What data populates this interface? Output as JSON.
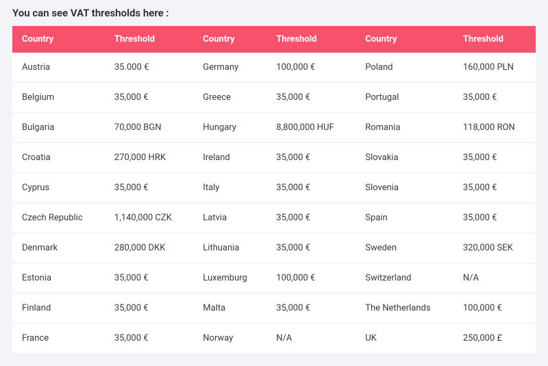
{
  "title": "You can see VAT thresholds here :",
  "colors": {
    "header_bg": "#f7526b",
    "header_text": "#ffffff",
    "page_bg": "#f3f4f7",
    "cell_bg": "#ffffff",
    "cell_text": "#3a3a3a",
    "border": "#ececf0",
    "title_text": "#2a2a2a"
  },
  "table": {
    "type": "table",
    "columns": [
      "Country",
      "Threshold",
      "Country",
      "Threshold",
      "Country",
      "Threshold"
    ],
    "rows": [
      [
        "Austria",
        "35.000 €",
        "Germany",
        "100,000 €",
        "Poland",
        "160,000 PLN"
      ],
      [
        "Belgium",
        "35,000 €",
        "Greece",
        "35,000 €",
        "Portugal",
        "35,000 €"
      ],
      [
        "Bulgaria",
        "70,000 BGN",
        "Hungary",
        "8,800,000 HUF",
        "Romania",
        "118,000 RON"
      ],
      [
        "Croatia",
        "270,000 HRK",
        "Ireland",
        "35,000 €",
        "Slovakia",
        "35,000 €"
      ],
      [
        "Cyprus",
        "35,000 €",
        "Italy",
        "35,000 €",
        "Slovenia",
        "35,000 €"
      ],
      [
        "Czech Republic",
        "1,140,000 CZK",
        "Latvia",
        "35,000 €",
        "Spain",
        "35,000 €"
      ],
      [
        "Denmark",
        "280,000 DKK",
        "Lithuania",
        "35,000 €",
        "Sweden",
        "320,000 SEK"
      ],
      [
        "Estonia",
        "35,000 €",
        "Luxemburg",
        "100,000 €",
        "Switzerland",
        "N/A"
      ],
      [
        "Finland",
        "35,000 €",
        "Malta",
        "35,000 €",
        "The Netherlands",
        "100,000 €"
      ],
      [
        "France",
        "35,000 €",
        "Norway",
        "N/A",
        "UK",
        "250,000 £"
      ]
    ]
  }
}
